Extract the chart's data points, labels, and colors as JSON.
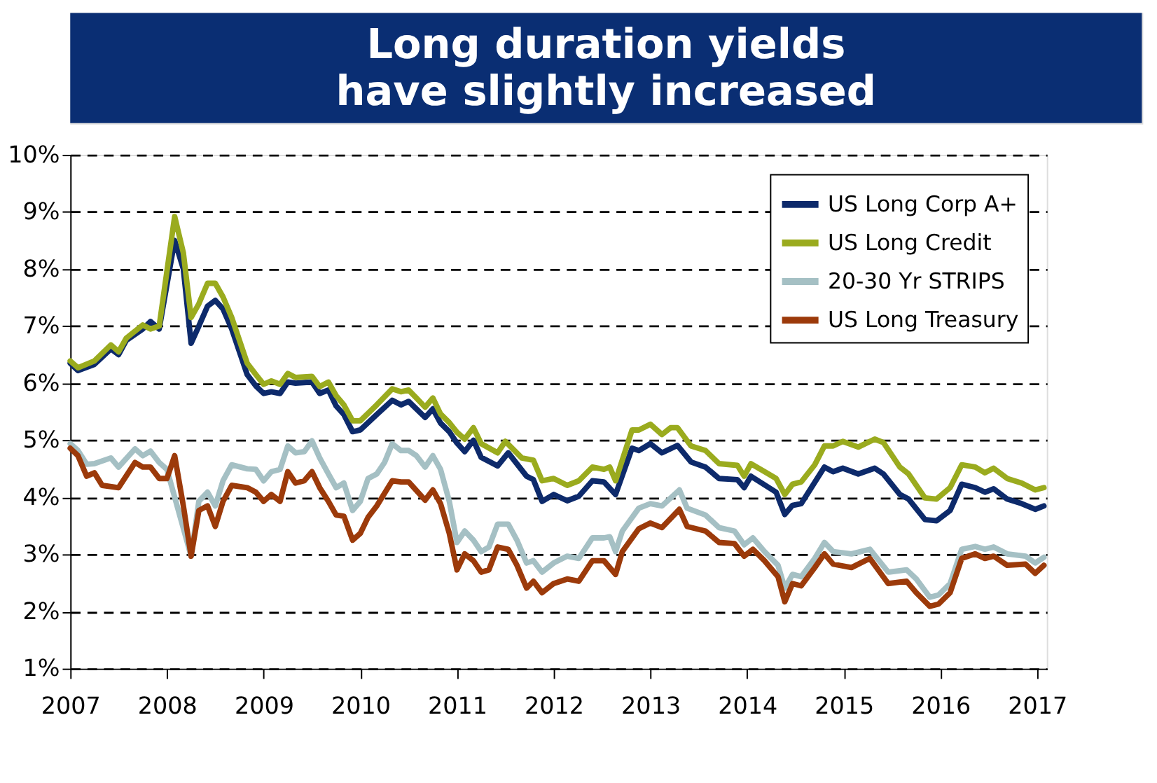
{
  "chart_data": {
    "type": "line",
    "title": "Long duration yields have slightly increased",
    "xlim": [
      2007,
      2017.1
    ],
    "xticks": [
      2007,
      2008,
      2009,
      2010,
      2011,
      2012,
      2013,
      2014,
      2015,
      2016,
      2017
    ],
    "ylim": [
      1,
      10
    ],
    "yticks": [
      {
        "value": 1,
        "label": "1%"
      },
      {
        "value": 2,
        "label": "2%"
      },
      {
        "value": 3,
        "label": "3%"
      },
      {
        "value": 4,
        "label": "4%"
      },
      {
        "value": 5,
        "label": "5%"
      },
      {
        "value": 6,
        "label": "6%"
      },
      {
        "value": 7,
        "label": "7%"
      },
      {
        "value": 8,
        "label": "8%"
      },
      {
        "value": 9,
        "label": "9%"
      },
      {
        "value": 10,
        "label": "10%"
      }
    ],
    "grid": "y",
    "legend": "top right",
    "marker": "none",
    "line_style": "solid",
    "series": [
      {
        "name": "US Long Corp A+",
        "color": "#0d2a6b",
        "x": [
          2007.0,
          2007.08,
          2007.25,
          2007.42,
          2007.5,
          2007.58,
          2007.75,
          2007.83,
          2007.92,
          2008.08,
          2008.17,
          2008.25,
          2008.33,
          2008.42,
          2008.5,
          2008.58,
          2008.67,
          2008.83,
          2008.92,
          2009.0,
          2009.08,
          2009.17,
          2009.25,
          2009.33,
          2009.5,
          2009.58,
          2009.67,
          2009.75,
          2009.83,
          2009.92,
          2010.0,
          2010.17,
          2010.33,
          2010.42,
          2010.5,
          2010.58,
          2010.67,
          2010.75,
          2010.83,
          2010.92,
          2011.0,
          2011.08,
          2011.17,
          2011.25,
          2011.42,
          2011.53,
          2011.72,
          2011.79,
          2011.88,
          2012.0,
          2012.14,
          2012.26,
          2012.4,
          2012.52,
          2012.64,
          2012.81,
          2012.88,
          2013.0,
          2013.12,
          2013.28,
          2013.42,
          2013.57,
          2013.71,
          2013.9,
          2013.97,
          2014.04,
          2014.3,
          2014.39,
          2014.47,
          2014.56,
          2014.8,
          2014.89,
          2014.99,
          2015.15,
          2015.32,
          2015.41,
          2015.58,
          2015.67,
          2015.84,
          2015.96,
          2016.1,
          2016.22,
          2016.36,
          2016.46,
          2016.55,
          2016.69,
          2016.84,
          2016.98,
          2017.07
        ],
        "values": [
          6.35,
          6.22,
          6.33,
          6.6,
          6.5,
          6.75,
          6.95,
          7.08,
          6.95,
          8.5,
          8.0,
          6.7,
          7.0,
          7.35,
          7.45,
          7.3,
          6.95,
          6.15,
          5.95,
          5.82,
          5.85,
          5.82,
          6.02,
          6.0,
          6.02,
          5.82,
          5.88,
          5.6,
          5.45,
          5.15,
          5.18,
          5.45,
          5.7,
          5.62,
          5.68,
          5.55,
          5.4,
          5.55,
          5.3,
          5.15,
          4.95,
          4.8,
          5.0,
          4.7,
          4.55,
          4.78,
          4.37,
          4.31,
          3.93,
          4.05,
          3.94,
          4.02,
          4.29,
          4.27,
          4.05,
          4.86,
          4.82,
          4.94,
          4.78,
          4.91,
          4.62,
          4.53,
          4.33,
          4.31,
          4.17,
          4.37,
          4.09,
          3.7,
          3.86,
          3.89,
          4.53,
          4.45,
          4.51,
          4.41,
          4.51,
          4.41,
          4.05,
          3.97,
          3.61,
          3.59,
          3.77,
          4.23,
          4.17,
          4.09,
          4.15,
          3.97,
          3.89,
          3.79,
          3.85
        ]
      },
      {
        "name": "US Long Credit",
        "color": "#9aab1e",
        "x": [
          2007.0,
          2007.08,
          2007.25,
          2007.42,
          2007.5,
          2007.58,
          2007.75,
          2007.83,
          2007.92,
          2008.08,
          2008.17,
          2008.25,
          2008.33,
          2008.42,
          2008.5,
          2008.58,
          2008.67,
          2008.83,
          2008.92,
          2009.0,
          2009.08,
          2009.17,
          2009.25,
          2009.33,
          2009.5,
          2009.58,
          2009.67,
          2009.75,
          2009.83,
          2009.92,
          2010.0,
          2010.17,
          2010.33,
          2010.42,
          2010.5,
          2010.58,
          2010.67,
          2010.75,
          2010.83,
          2010.92,
          2011.0,
          2011.08,
          2011.17,
          2011.25,
          2011.42,
          2011.5,
          2011.67,
          2011.79,
          2011.88,
          2012.0,
          2012.14,
          2012.26,
          2012.4,
          2012.52,
          2012.58,
          2012.64,
          2012.81,
          2012.88,
          2013.0,
          2013.12,
          2013.21,
          2013.28,
          2013.42,
          2013.57,
          2013.71,
          2013.9,
          2013.97,
          2014.04,
          2014.18,
          2014.3,
          2014.39,
          2014.47,
          2014.56,
          2014.7,
          2014.8,
          2014.89,
          2014.99,
          2015.15,
          2015.32,
          2015.41,
          2015.58,
          2015.67,
          2015.84,
          2015.96,
          2016.1,
          2016.22,
          2016.36,
          2016.46,
          2016.55,
          2016.69,
          2016.84,
          2016.98,
          2017.07
        ],
        "values": [
          6.39,
          6.27,
          6.39,
          6.67,
          6.55,
          6.79,
          7.02,
          6.95,
          7.0,
          8.92,
          8.28,
          7.15,
          7.39,
          7.75,
          7.75,
          7.51,
          7.15,
          6.35,
          6.15,
          5.98,
          6.04,
          5.98,
          6.17,
          6.1,
          6.12,
          5.94,
          6.02,
          5.78,
          5.62,
          5.34,
          5.34,
          5.62,
          5.9,
          5.85,
          5.88,
          5.74,
          5.58,
          5.74,
          5.46,
          5.31,
          5.14,
          5.02,
          5.22,
          4.94,
          4.78,
          4.98,
          4.69,
          4.65,
          4.29,
          4.33,
          4.21,
          4.29,
          4.53,
          4.49,
          4.53,
          4.29,
          5.18,
          5.18,
          5.28,
          5.1,
          5.22,
          5.22,
          4.9,
          4.82,
          4.59,
          4.56,
          4.37,
          4.59,
          4.45,
          4.33,
          4.05,
          4.23,
          4.27,
          4.57,
          4.9,
          4.9,
          4.98,
          4.88,
          5.02,
          4.96,
          4.53,
          4.41,
          3.99,
          3.97,
          4.17,
          4.57,
          4.53,
          4.43,
          4.51,
          4.33,
          4.25,
          4.13,
          4.17
        ]
      },
      {
        "name": "20-30 Yr STRIPS",
        "color": "#a5c0c4",
        "x": [
          2007.0,
          2007.08,
          2007.17,
          2007.25,
          2007.42,
          2007.5,
          2007.67,
          2007.75,
          2007.83,
          2007.92,
          2008.0,
          2008.25,
          2008.33,
          2008.42,
          2008.5,
          2008.58,
          2008.67,
          2008.83,
          2008.92,
          2009.0,
          2009.08,
          2009.17,
          2009.25,
          2009.33,
          2009.42,
          2009.5,
          2009.58,
          2009.67,
          2009.75,
          2009.83,
          2009.92,
          2010.0,
          2010.08,
          2010.17,
          2010.25,
          2010.33,
          2010.42,
          2010.5,
          2010.58,
          2010.67,
          2010.75,
          2010.83,
          2010.92,
          2011.0,
          2011.08,
          2011.17,
          2011.25,
          2011.33,
          2011.42,
          2011.53,
          2011.62,
          2011.72,
          2011.79,
          2011.88,
          2012.0,
          2012.14,
          2012.26,
          2012.4,
          2012.52,
          2012.58,
          2012.64,
          2012.71,
          2012.88,
          2013.0,
          2013.12,
          2013.3,
          2013.38,
          2013.57,
          2013.71,
          2013.87,
          2013.97,
          2014.06,
          2014.18,
          2014.32,
          2014.39,
          2014.47,
          2014.56,
          2014.7,
          2014.8,
          2014.89,
          2015.08,
          2015.27,
          2015.46,
          2015.65,
          2015.75,
          2015.89,
          2015.98,
          2016.1,
          2016.22,
          2016.36,
          2016.46,
          2016.55,
          2016.69,
          2016.88,
          2016.98,
          2017.07
        ],
        "values": [
          4.94,
          4.82,
          4.58,
          4.59,
          4.69,
          4.53,
          4.85,
          4.73,
          4.81,
          4.61,
          4.49,
          2.97,
          3.93,
          4.09,
          3.85,
          4.29,
          4.57,
          4.5,
          4.49,
          4.29,
          4.45,
          4.49,
          4.9,
          4.78,
          4.8,
          4.99,
          4.69,
          4.41,
          4.17,
          4.25,
          3.77,
          3.93,
          4.33,
          4.41,
          4.61,
          4.94,
          4.82,
          4.82,
          4.73,
          4.53,
          4.73,
          4.49,
          3.93,
          3.21,
          3.41,
          3.25,
          3.05,
          3.13,
          3.53,
          3.53,
          3.25,
          2.85,
          2.89,
          2.69,
          2.85,
          2.97,
          2.93,
          3.29,
          3.29,
          3.31,
          3.05,
          3.41,
          3.81,
          3.89,
          3.85,
          4.13,
          3.81,
          3.69,
          3.47,
          3.41,
          3.17,
          3.29,
          3.05,
          2.81,
          2.41,
          2.65,
          2.61,
          2.93,
          3.21,
          3.05,
          3.01,
          3.09,
          2.69,
          2.73,
          2.57,
          2.25,
          2.29,
          2.49,
          3.09,
          3.14,
          3.09,
          3.13,
          3.01,
          2.97,
          2.85,
          2.95
        ]
      },
      {
        "name": "US Long Treasury",
        "color": "#9c3a0a",
        "x": [
          2007.0,
          2007.08,
          2007.17,
          2007.25,
          2007.33,
          2007.5,
          2007.67,
          2007.75,
          2007.83,
          2007.92,
          2008.0,
          2008.08,
          2008.17,
          2008.25,
          2008.33,
          2008.42,
          2008.5,
          2008.58,
          2008.67,
          2008.83,
          2008.92,
          2009.0,
          2009.08,
          2009.17,
          2009.25,
          2009.33,
          2009.42,
          2009.5,
          2009.58,
          2009.67,
          2009.75,
          2009.83,
          2009.92,
          2010.0,
          2010.08,
          2010.17,
          2010.33,
          2010.42,
          2010.5,
          2010.67,
          2010.75,
          2010.83,
          2010.92,
          2011.0,
          2011.08,
          2011.17,
          2011.25,
          2011.33,
          2011.42,
          2011.53,
          2011.62,
          2011.72,
          2011.79,
          2011.88,
          2012.0,
          2012.14,
          2012.26,
          2012.4,
          2012.52,
          2012.64,
          2012.71,
          2012.88,
          2013.0,
          2013.12,
          2013.3,
          2013.38,
          2013.57,
          2013.71,
          2013.87,
          2013.97,
          2014.06,
          2014.18,
          2014.32,
          2014.39,
          2014.47,
          2014.56,
          2014.7,
          2014.8,
          2014.89,
          2015.08,
          2015.27,
          2015.46,
          2015.65,
          2015.75,
          2015.89,
          2015.98,
          2016.1,
          2016.22,
          2016.36,
          2016.46,
          2016.55,
          2016.69,
          2016.88,
          2016.98,
          2017.07
        ],
        "values": [
          4.86,
          4.73,
          4.37,
          4.43,
          4.21,
          4.17,
          4.61,
          4.53,
          4.53,
          4.33,
          4.33,
          4.73,
          3.85,
          2.97,
          3.77,
          3.85,
          3.49,
          3.93,
          4.21,
          4.17,
          4.09,
          3.93,
          4.05,
          3.93,
          4.45,
          4.25,
          4.29,
          4.45,
          4.17,
          3.93,
          3.69,
          3.67,
          3.25,
          3.37,
          3.65,
          3.85,
          4.29,
          4.27,
          4.27,
          3.95,
          4.13,
          3.89,
          3.37,
          2.73,
          3.01,
          2.89,
          2.69,
          2.73,
          3.13,
          3.09,
          2.81,
          2.41,
          2.53,
          2.33,
          2.49,
          2.57,
          2.53,
          2.89,
          2.89,
          2.65,
          3.05,
          3.45,
          3.55,
          3.47,
          3.79,
          3.49,
          3.41,
          3.21,
          3.19,
          2.97,
          3.09,
          2.89,
          2.61,
          2.17,
          2.49,
          2.45,
          2.77,
          3.01,
          2.83,
          2.77,
          2.93,
          2.49,
          2.53,
          2.33,
          2.09,
          2.13,
          2.33,
          2.93,
          3.01,
          2.93,
          2.97,
          2.81,
          2.83,
          2.67,
          2.81
        ]
      }
    ]
  }
}
